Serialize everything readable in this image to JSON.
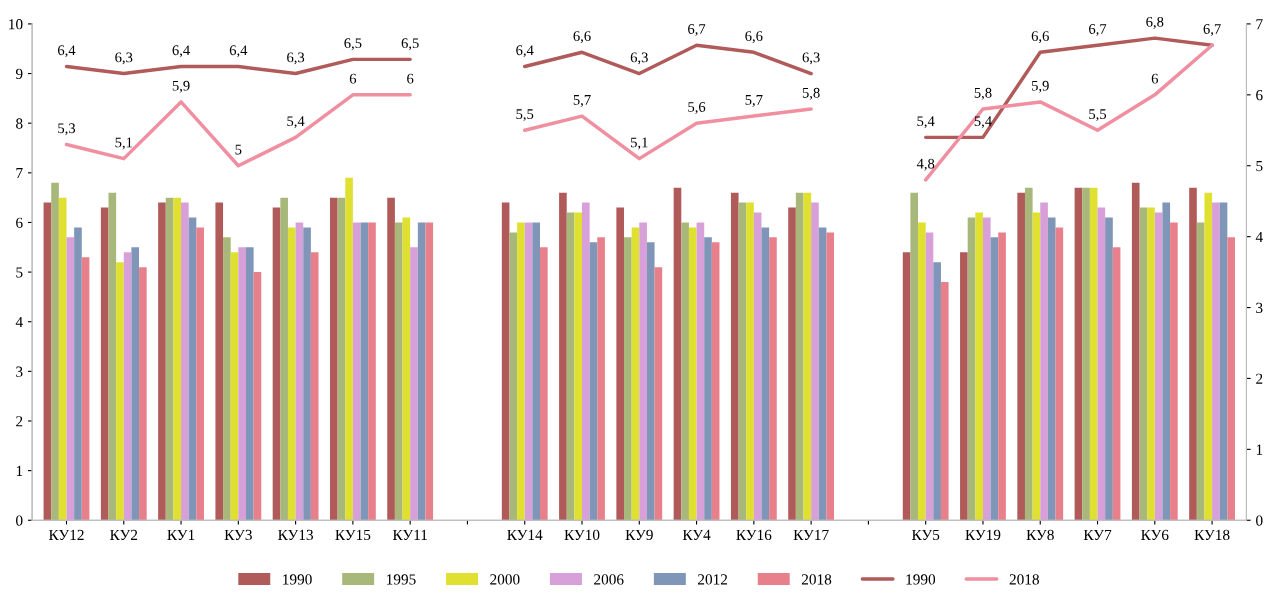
{
  "chart_data": {
    "type": "bar",
    "categories": [
      "КУ12",
      "КУ2",
      "КУ1",
      "КУ3",
      "КУ13",
      "КУ15",
      "КУ11",
      null,
      "КУ14",
      "КУ10",
      "КУ9",
      "КУ4",
      "КУ16",
      "КУ17",
      null,
      "КУ5",
      "КУ19",
      "КУ8",
      "КУ7",
      "КУ6",
      "КУ18"
    ],
    "ylim": [
      0,
      10
    ],
    "yticks": [
      0,
      1,
      2,
      3,
      4,
      5,
      6,
      7,
      8,
      9,
      10
    ],
    "y2lim": [
      0,
      7
    ],
    "y2ticks": [
      0,
      1,
      2,
      3,
      4,
      5,
      6,
      7
    ],
    "legend": "bottom",
    "grid": false,
    "series": [
      {
        "name": "1990",
        "color": "#b05a5a",
        "values": [
          6.4,
          6.3,
          6.4,
          6.4,
          6.3,
          6.5,
          6.5,
          null,
          6.4,
          6.6,
          6.3,
          6.7,
          6.6,
          6.3,
          null,
          5.4,
          5.4,
          6.6,
          6.7,
          6.8,
          6.7
        ]
      },
      {
        "name": "1995",
        "color": "#a8b87a",
        "values": [
          6.8,
          6.6,
          6.5,
          5.7,
          6.5,
          6.5,
          6.0,
          null,
          5.8,
          6.2,
          5.7,
          6.0,
          6.4,
          6.6,
          null,
          6.6,
          6.1,
          6.7,
          6.7,
          6.3,
          6.0
        ]
      },
      {
        "name": "2000",
        "color": "#e0e030",
        "values": [
          6.5,
          5.2,
          6.5,
          5.4,
          5.9,
          6.9,
          6.1,
          null,
          6.0,
          6.2,
          5.9,
          5.9,
          6.4,
          6.6,
          null,
          6.0,
          6.2,
          6.2,
          6.7,
          6.3,
          6.6
        ]
      },
      {
        "name": "2006",
        "color": "#d8a0d8",
        "values": [
          5.7,
          5.4,
          6.4,
          5.5,
          6.0,
          6.0,
          5.5,
          null,
          6.0,
          6.4,
          6.0,
          6.0,
          6.2,
          6.4,
          null,
          5.8,
          6.1,
          6.4,
          6.3,
          6.2,
          6.4
        ]
      },
      {
        "name": "2012",
        "color": "#7f96b8",
        "values": [
          5.9,
          5.5,
          6.1,
          5.5,
          5.9,
          6.0,
          6.0,
          null,
          6.0,
          5.6,
          5.6,
          5.7,
          5.9,
          5.9,
          null,
          5.2,
          5.7,
          6.1,
          6.1,
          6.4,
          6.4
        ]
      },
      {
        "name": "2018",
        "color": "#e8808c",
        "values": [
          5.3,
          5.1,
          5.9,
          5.0,
          5.4,
          6.0,
          6.0,
          null,
          5.5,
          5.7,
          5.1,
          5.6,
          5.7,
          5.8,
          null,
          4.8,
          5.8,
          5.9,
          5.5,
          6.0,
          5.7
        ]
      },
      {
        "name": "1990",
        "type": "line",
        "axis": "y2",
        "color": "#b05a5a",
        "values": [
          6.4,
          6.3,
          6.4,
          6.4,
          6.3,
          6.5,
          6.5,
          null,
          6.4,
          6.6,
          6.3,
          6.7,
          6.6,
          6.3,
          null,
          5.4,
          5.4,
          6.6,
          6.7,
          6.8,
          6.7
        ],
        "value_labels": [
          "6,4",
          "6,3",
          "6,4",
          "6,4",
          "6,3",
          "6,5",
          "6,5",
          null,
          "6,4",
          "6,6",
          "6,3",
          "6,7",
          "6,6",
          "6,3",
          null,
          "5,4",
          "5,4",
          "6,6",
          "6,7",
          "6,8",
          null
        ]
      },
      {
        "name": "2018",
        "type": "line",
        "axis": "y2",
        "color": "#f08fa0",
        "values": [
          5.3,
          5.1,
          5.9,
          5.0,
          5.4,
          6.0,
          6.0,
          null,
          5.5,
          5.7,
          5.1,
          5.6,
          5.7,
          5.8,
          null,
          4.8,
          5.8,
          5.9,
          5.5,
          6.0,
          6.7
        ],
        "value_labels": [
          "5,3",
          "5,1",
          "5,9",
          "5",
          "5,4",
          "6",
          "6",
          null,
          "5,5",
          "5,7",
          "5,1",
          "5,6",
          "5,7",
          "5,8",
          null,
          "4,8",
          "5,8",
          "5,9",
          "5,5",
          "6",
          "6,7"
        ]
      }
    ]
  }
}
